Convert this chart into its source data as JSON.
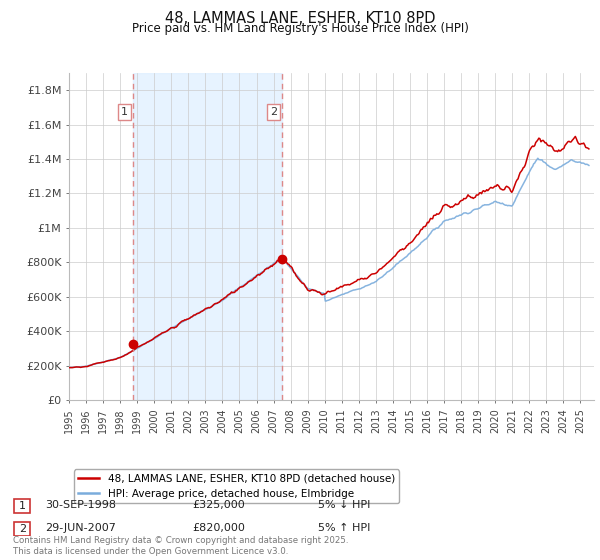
{
  "title": "48, LAMMAS LANE, ESHER, KT10 8PD",
  "subtitle": "Price paid vs. HM Land Registry's House Price Index (HPI)",
  "ylabel_ticks": [
    "£0",
    "£200K",
    "£400K",
    "£600K",
    "£800K",
    "£1M",
    "£1.2M",
    "£1.4M",
    "£1.6M",
    "£1.8M"
  ],
  "ytick_values": [
    0,
    200000,
    400000,
    600000,
    800000,
    1000000,
    1200000,
    1400000,
    1600000,
    1800000
  ],
  "ylim": [
    0,
    1900000
  ],
  "xlim_start": 1995.0,
  "xlim_end": 2025.8,
  "sale1_x": 1998.75,
  "sale1_y": 325000,
  "sale1_label": "1",
  "sale2_x": 2007.5,
  "sale2_y": 820000,
  "sale2_label": "2",
  "legend_entry1": "48, LAMMAS LANE, ESHER, KT10 8PD (detached house)",
  "legend_entry2": "HPI: Average price, detached house, Elmbridge",
  "table_row1": [
    "1",
    "30-SEP-1998",
    "£325,000",
    "5% ↓ HPI"
  ],
  "table_row2": [
    "2",
    "29-JUN-2007",
    "£820,000",
    "5% ↑ HPI"
  ],
  "footer": "Contains HM Land Registry data © Crown copyright and database right 2025.\nThis data is licensed under the Open Government Licence v3.0.",
  "line_color_price": "#cc0000",
  "line_color_hpi": "#7aacdc",
  "vline_color": "#dd8888",
  "shade_color": "#ddeeff",
  "background_color": "#ffffff",
  "grid_color": "#cccccc"
}
